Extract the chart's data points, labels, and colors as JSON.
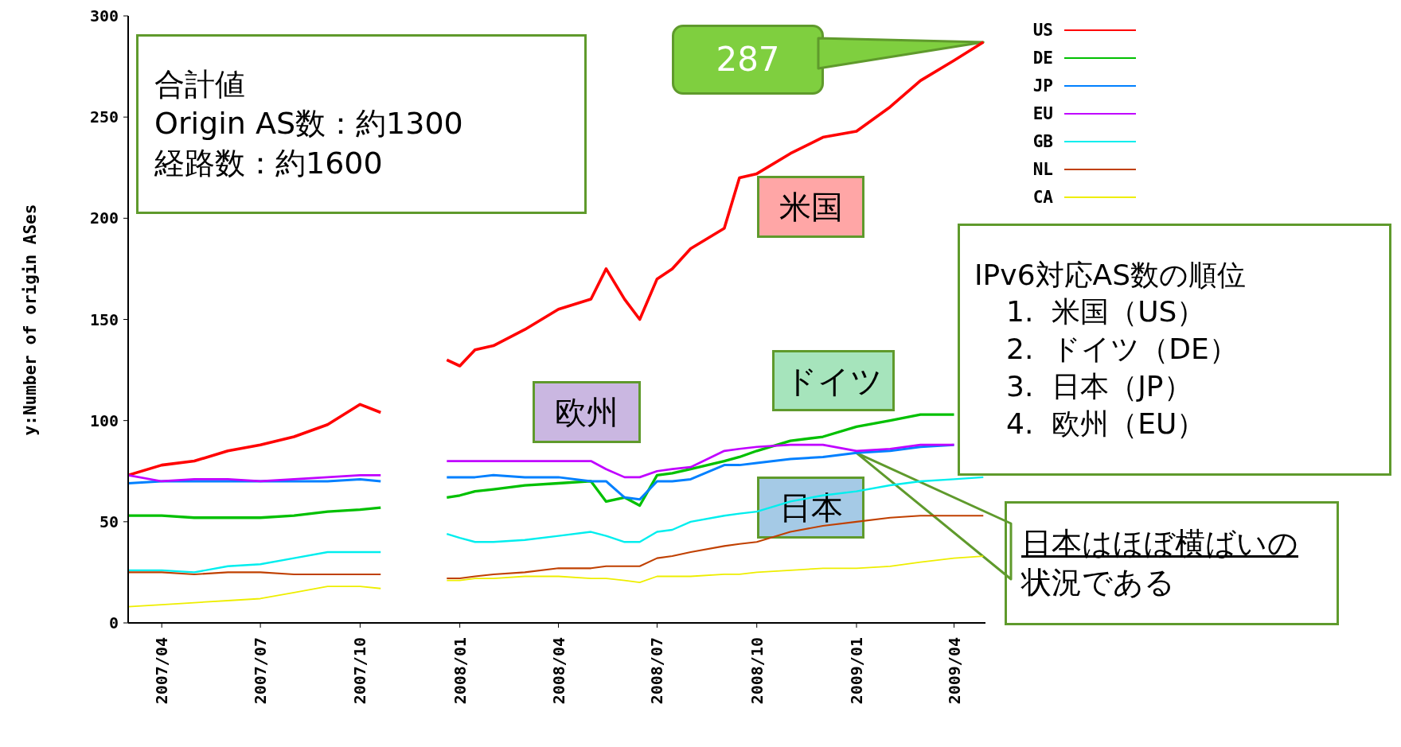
{
  "chart_data": {
    "type": "line",
    "ylabel": "y:Number of origin ASes",
    "x": [
      "2007-03-01",
      "2007-04-01",
      "2007-05-01",
      "2007-06-01",
      "2007-07-01",
      "2007-08-01",
      "2007-09-01",
      "2007-10-01",
      "2007-10-20",
      "2007-11-20",
      "2007-12-20",
      "2008-01-01",
      "2008-01-15",
      "2008-02-01",
      "2008-03-01",
      "2008-04-01",
      "2008-05-01",
      "2008-05-15",
      "2008-06-01",
      "2008-06-15",
      "2008-07-01",
      "2008-07-15",
      "2008-08-01",
      "2008-09-01",
      "2008-09-15",
      "2008-10-01",
      "2008-11-01",
      "2008-12-01",
      "2009-01-01",
      "2009-02-01",
      "2009-03-01",
      "2009-04-01",
      "2009-04-28"
    ],
    "series": [
      {
        "name": "US",
        "color": "#ff0000",
        "values": [
          73,
          78,
          80,
          85,
          88,
          92,
          98,
          108,
          104,
          null,
          130,
          127,
          135,
          137,
          145,
          155,
          160,
          175,
          160,
          150,
          170,
          175,
          185,
          195,
          220,
          222,
          232,
          240,
          243,
          255,
          268,
          278,
          287
        ]
      },
      {
        "name": "DE",
        "color": "#00c000",
        "values": [
          53,
          53,
          52,
          52,
          52,
          53,
          55,
          56,
          57,
          null,
          62,
          63,
          65,
          66,
          68,
          69,
          70,
          60,
          62,
          58,
          73,
          74,
          76,
          80,
          82,
          85,
          90,
          92,
          97,
          100,
          103,
          103,
          null
        ]
      },
      {
        "name": "JP",
        "color": "#0080ff",
        "values": [
          69,
          70,
          70,
          70,
          70,
          70,
          70,
          71,
          70,
          null,
          72,
          72,
          72,
          73,
          72,
          72,
          70,
          70,
          62,
          61,
          70,
          70,
          71,
          78,
          78,
          79,
          81,
          82,
          84,
          85,
          87,
          88,
          null
        ]
      },
      {
        "name": "EU",
        "color": "#c000ff",
        "values": [
          73,
          70,
          71,
          71,
          70,
          71,
          72,
          73,
          73,
          null,
          80,
          80,
          80,
          80,
          80,
          80,
          80,
          76,
          72,
          72,
          75,
          76,
          77,
          85,
          86,
          87,
          88,
          88,
          85,
          86,
          88,
          88,
          null
        ]
      },
      {
        "name": "GB",
        "color": "#00eeee",
        "values": [
          26,
          26,
          25,
          28,
          29,
          32,
          35,
          35,
          35,
          null,
          44,
          42,
          40,
          40,
          41,
          43,
          45,
          43,
          40,
          40,
          45,
          46,
          50,
          53,
          54,
          55,
          60,
          63,
          65,
          68,
          70,
          71,
          72
        ]
      },
      {
        "name": "NL",
        "color": "#c04000",
        "values": [
          25,
          25,
          24,
          25,
          25,
          24,
          24,
          24,
          24,
          null,
          22,
          22,
          23,
          24,
          25,
          27,
          27,
          28,
          28,
          28,
          32,
          33,
          35,
          38,
          39,
          40,
          45,
          48,
          50,
          52,
          53,
          53,
          53
        ]
      },
      {
        "name": "CA",
        "color": "#eeee00",
        "values": [
          8,
          9,
          10,
          11,
          12,
          15,
          18,
          18,
          17,
          null,
          21,
          21,
          22,
          22,
          23,
          23,
          22,
          22,
          21,
          20,
          23,
          23,
          23,
          24,
          24,
          25,
          26,
          27,
          27,
          28,
          30,
          32,
          33
        ]
      }
    ],
    "xlim": [
      "2007-03-01",
      "2009-04-30"
    ],
    "xticks": [
      {
        "value": "2007-04-01",
        "label": "2007/04"
      },
      {
        "value": "2007-07-01",
        "label": "2007/07"
      },
      {
        "value": "2007-10-01",
        "label": "2007/10"
      },
      {
        "value": "2008-01-01",
        "label": "2008/01"
      },
      {
        "value": "2008-04-01",
        "label": "2008/04"
      },
      {
        "value": "2008-07-01",
        "label": "2008/07"
      },
      {
        "value": "2008-10-01",
        "label": "2008/10"
      },
      {
        "value": "2009-01-01",
        "label": "2009/01"
      },
      {
        "value": "2009-04-01",
        "label": "2009/04"
      }
    ],
    "ylim": [
      0,
      300
    ],
    "yticks": [
      0,
      50,
      100,
      150,
      200,
      250,
      300
    ],
    "legend": "top right",
    "annotations": [
      "合計値\nOrigin AS数：約1300\n経路数：約1600",
      {
        "text": "287",
        "x": "2009-04-28",
        "y": 287
      },
      "米国",
      "ドイツ",
      "欧州",
      "日本",
      "IPv6対応AS数の順位\n1.  米国（US）\n2.  ドイツ（DE）\n3.  日本（JP）\n4.  欧州（EU）",
      "日本はほぼ横ばいの状況である"
    ]
  }
}
